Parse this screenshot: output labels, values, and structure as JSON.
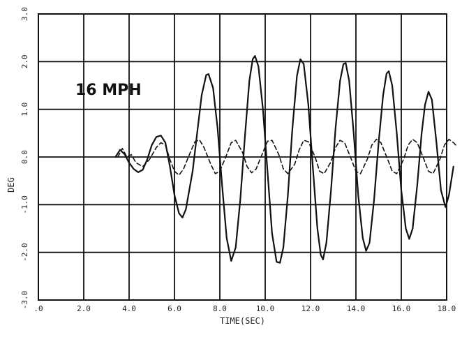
{
  "chart_data": {
    "type": "line",
    "xlabel": "TIME(SEC)",
    "ylabel": "DEG",
    "xlim": [
      0,
      18
    ],
    "ylim": [
      -3,
      3
    ],
    "x_ticks": [
      ".0",
      "2.0",
      "4.0",
      "6.0",
      "8.0",
      "10.0",
      "12.0",
      "14.0",
      "16.0",
      "18.0"
    ],
    "y_ticks": [
      "-3.0",
      "-2.0",
      "-1.0",
      "0.0",
      "1.0",
      "2.0",
      "3.0"
    ],
    "annotation": "16 MPH",
    "grid": true,
    "colors": {
      "line": "#111111",
      "grid": "#111111",
      "background": "#ffffff"
    },
    "series": [
      {
        "style": "solid",
        "points": [
          [
            3.4,
            0.0
          ],
          [
            3.6,
            0.15
          ],
          [
            3.8,
            0.06
          ],
          [
            4.0,
            -0.12
          ],
          [
            4.2,
            -0.25
          ],
          [
            4.4,
            -0.32
          ],
          [
            4.6,
            -0.27
          ],
          [
            4.8,
            -0.05
          ],
          [
            5.0,
            0.25
          ],
          [
            5.2,
            0.42
          ],
          [
            5.4,
            0.45
          ],
          [
            5.6,
            0.3
          ],
          [
            5.8,
            -0.2
          ],
          [
            6.0,
            -0.8
          ],
          [
            6.2,
            -1.18
          ],
          [
            6.35,
            -1.27
          ],
          [
            6.5,
            -1.1
          ],
          [
            6.8,
            -0.3
          ],
          [
            7.0,
            0.5
          ],
          [
            7.2,
            1.3
          ],
          [
            7.4,
            1.72
          ],
          [
            7.5,
            1.74
          ],
          [
            7.7,
            1.45
          ],
          [
            7.9,
            0.6
          ],
          [
            8.1,
            -0.6
          ],
          [
            8.3,
            -1.7
          ],
          [
            8.5,
            -2.18
          ],
          [
            8.7,
            -1.9
          ],
          [
            8.9,
            -0.9
          ],
          [
            9.1,
            0.4
          ],
          [
            9.3,
            1.6
          ],
          [
            9.45,
            2.05
          ],
          [
            9.55,
            2.12
          ],
          [
            9.7,
            1.9
          ],
          [
            9.9,
            1.0
          ],
          [
            10.1,
            -0.3
          ],
          [
            10.3,
            -1.6
          ],
          [
            10.5,
            -2.2
          ],
          [
            10.65,
            -2.22
          ],
          [
            10.8,
            -1.9
          ],
          [
            11.0,
            -0.8
          ],
          [
            11.2,
            0.6
          ],
          [
            11.4,
            1.7
          ],
          [
            11.55,
            2.05
          ],
          [
            11.7,
            1.95
          ],
          [
            11.9,
            1.1
          ],
          [
            12.1,
            -0.2
          ],
          [
            12.3,
            -1.5
          ],
          [
            12.45,
            -2.05
          ],
          [
            12.55,
            -2.15
          ],
          [
            12.7,
            -1.8
          ],
          [
            12.9,
            -0.7
          ],
          [
            13.1,
            0.6
          ],
          [
            13.3,
            1.6
          ],
          [
            13.45,
            1.95
          ],
          [
            13.55,
            1.97
          ],
          [
            13.7,
            1.6
          ],
          [
            13.9,
            0.5
          ],
          [
            14.1,
            -0.8
          ],
          [
            14.3,
            -1.7
          ],
          [
            14.45,
            -1.97
          ],
          [
            14.6,
            -1.8
          ],
          [
            14.8,
            -0.9
          ],
          [
            15.0,
            0.3
          ],
          [
            15.2,
            1.3
          ],
          [
            15.35,
            1.75
          ],
          [
            15.45,
            1.8
          ],
          [
            15.6,
            1.5
          ],
          [
            15.8,
            0.5
          ],
          [
            16.0,
            -0.7
          ],
          [
            16.2,
            -1.5
          ],
          [
            16.35,
            -1.72
          ],
          [
            16.5,
            -1.5
          ],
          [
            16.7,
            -0.6
          ],
          [
            16.9,
            0.5
          ],
          [
            17.05,
            1.1
          ],
          [
            17.2,
            1.37
          ],
          [
            17.35,
            1.2
          ],
          [
            17.55,
            0.3
          ],
          [
            17.75,
            -0.7
          ],
          [
            17.95,
            -1.05
          ],
          [
            18.1,
            -0.8
          ],
          [
            18.3,
            -0.2
          ]
        ]
      },
      {
        "style": "dashed",
        "points": [
          [
            3.5,
            0.0
          ],
          [
            3.7,
            0.18
          ],
          [
            3.9,
            0.0
          ],
          [
            4.1,
            0.05
          ],
          [
            4.3,
            -0.12
          ],
          [
            4.6,
            -0.2
          ],
          [
            4.9,
            -0.05
          ],
          [
            5.2,
            0.2
          ],
          [
            5.4,
            0.3
          ],
          [
            5.6,
            0.25
          ],
          [
            5.8,
            -0.05
          ],
          [
            6.0,
            -0.3
          ],
          [
            6.2,
            -0.38
          ],
          [
            6.4,
            -0.25
          ],
          [
            6.7,
            0.1
          ],
          [
            6.9,
            0.32
          ],
          [
            7.1,
            0.36
          ],
          [
            7.3,
            0.2
          ],
          [
            7.6,
            -0.15
          ],
          [
            7.8,
            -0.35
          ],
          [
            8.0,
            -0.3
          ],
          [
            8.3,
            0.05
          ],
          [
            8.5,
            0.3
          ],
          [
            8.7,
            0.35
          ],
          [
            9.0,
            0.1
          ],
          [
            9.2,
            -0.2
          ],
          [
            9.4,
            -0.33
          ],
          [
            9.6,
            -0.25
          ],
          [
            9.9,
            0.1
          ],
          [
            10.1,
            0.33
          ],
          [
            10.3,
            0.35
          ],
          [
            10.6,
            0.05
          ],
          [
            10.8,
            -0.25
          ],
          [
            11.0,
            -0.35
          ],
          [
            11.3,
            -0.15
          ],
          [
            11.5,
            0.15
          ],
          [
            11.7,
            0.35
          ],
          [
            11.9,
            0.32
          ],
          [
            12.2,
            0.0
          ],
          [
            12.4,
            -0.3
          ],
          [
            12.6,
            -0.35
          ],
          [
            12.9,
            -0.1
          ],
          [
            13.1,
            0.2
          ],
          [
            13.3,
            0.35
          ],
          [
            13.5,
            0.3
          ],
          [
            13.8,
            -0.05
          ],
          [
            14.0,
            -0.3
          ],
          [
            14.2,
            -0.35
          ],
          [
            14.5,
            -0.05
          ],
          [
            14.7,
            0.25
          ],
          [
            14.9,
            0.37
          ],
          [
            15.1,
            0.3
          ],
          [
            15.4,
            -0.05
          ],
          [
            15.6,
            -0.3
          ],
          [
            15.8,
            -0.35
          ],
          [
            16.1,
            -0.05
          ],
          [
            16.3,
            0.25
          ],
          [
            16.5,
            0.37
          ],
          [
            16.7,
            0.3
          ],
          [
            17.0,
            -0.05
          ],
          [
            17.2,
            -0.3
          ],
          [
            17.4,
            -0.35
          ],
          [
            17.7,
            -0.05
          ],
          [
            17.9,
            0.25
          ],
          [
            18.1,
            0.37
          ],
          [
            18.3,
            0.3
          ],
          [
            18.4,
            0.25
          ]
        ]
      }
    ]
  }
}
